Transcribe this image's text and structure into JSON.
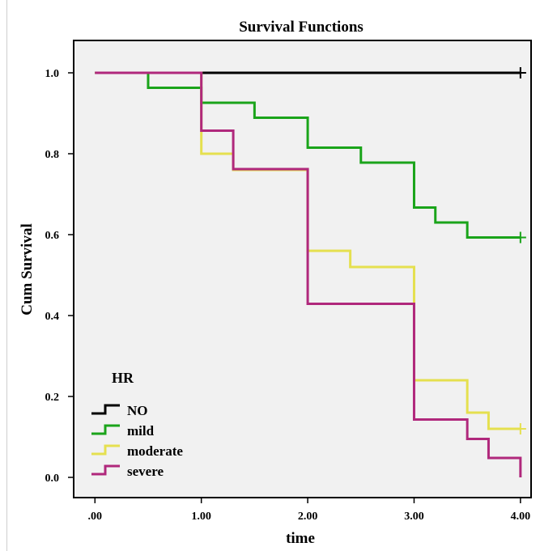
{
  "chart_data": {
    "type": "line",
    "title": "Survival Functions",
    "xlabel": "time",
    "ylabel": "Cum Survival",
    "xlim": [
      -0.2,
      4.1
    ],
    "ylim": [
      -0.05,
      1.08
    ],
    "xticks": [
      0,
      1,
      2,
      3,
      4
    ],
    "xtick_labels": [
      ".00",
      "1.00",
      "2.00",
      "3.00",
      "4.00"
    ],
    "yticks": [
      0,
      0.2,
      0.4,
      0.6,
      0.8,
      1.0
    ],
    "ytick_labels": [
      "0.0",
      "0.2",
      "0.4",
      "0.6",
      "0.8",
      "1.0"
    ],
    "grid": false,
    "background": "#f1f1f1",
    "legend": {
      "title": "HR",
      "position": "bottom-left"
    },
    "series": [
      {
        "name": "NO",
        "color": "#000000",
        "x": [
          0,
          4.0
        ],
        "y": [
          1.0,
          1.0
        ],
        "censored": [
          [
            4.0,
            1.0
          ]
        ]
      },
      {
        "name": "mild",
        "color": "#1aa41a",
        "x": [
          0,
          0.5,
          1.0,
          1.5,
          2.0,
          2.5,
          3.0,
          3.2,
          3.5,
          4.0
        ],
        "y": [
          1.0,
          0.963,
          0.926,
          0.889,
          0.815,
          0.778,
          0.667,
          0.63,
          0.593,
          0.593
        ],
        "censored": [
          [
            4.0,
            0.593
          ]
        ]
      },
      {
        "name": "moderate",
        "color": "#e5e04f",
        "x": [
          0,
          1.0,
          1.3,
          2.0,
          2.4,
          3.0,
          3.5,
          3.7,
          4.0
        ],
        "y": [
          1.0,
          0.8,
          0.76,
          0.56,
          0.52,
          0.24,
          0.16,
          0.12,
          0.12
        ],
        "censored": [
          [
            4.0,
            0.12
          ]
        ]
      },
      {
        "name": "severe",
        "color": "#b0287c",
        "x": [
          0,
          1.0,
          1.3,
          2.0,
          3.0,
          3.5,
          3.7,
          4.0
        ],
        "y": [
          1.0,
          0.857,
          0.762,
          0.429,
          0.143,
          0.095,
          0.048,
          0.0
        ],
        "censored": []
      }
    ]
  }
}
